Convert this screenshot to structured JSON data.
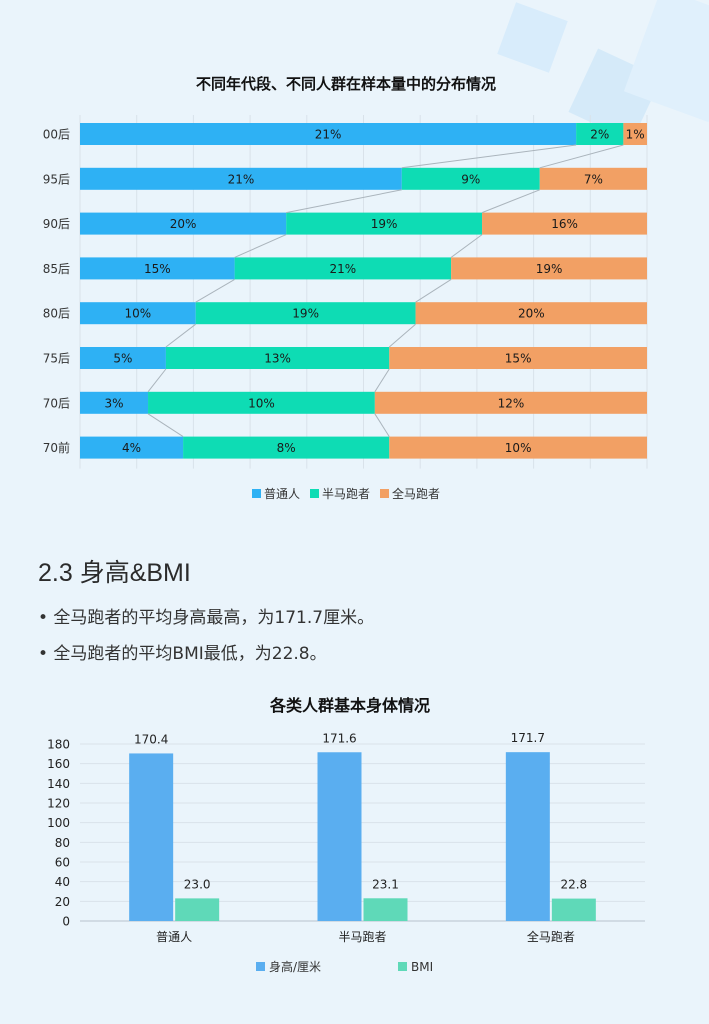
{
  "section": {
    "title": "2.3 身高&BMI",
    "bullets": [
      "• 全马跑者的平均身高最高，为171.7厘米。",
      "• 全马跑者的平均BMI最低，为22.8。"
    ]
  },
  "chart_data": [
    {
      "type": "bar",
      "orientation": "horizontal",
      "stacked": true,
      "title": "不同年代段、不同人群在样本量中的分布情况",
      "categories": [
        "00后",
        "95后",
        "90后",
        "85后",
        "80后",
        "75后",
        "70后",
        "70前"
      ],
      "series": [
        {
          "name": "普通人",
          "color": "#2eb1f4",
          "values": [
            21,
            21,
            20,
            15,
            10,
            5,
            3,
            4
          ]
        },
        {
          "name": "半马跑者",
          "color": "#0edcb4",
          "values": [
            2,
            9,
            19,
            21,
            19,
            13,
            10,
            8
          ]
        },
        {
          "name": "全马跑者",
          "color": "#f2a064",
          "values": [
            1,
            7,
            16,
            19,
            20,
            15,
            12,
            10
          ]
        }
      ],
      "value_suffix": "%",
      "legend": "bottom",
      "grid": true
    },
    {
      "type": "bar",
      "title": "各类人群基本身体情况",
      "categories": [
        "普通人",
        "半马跑者",
        "全马跑者"
      ],
      "series": [
        {
          "name": "身高/厘米",
          "color": "#5aaef0",
          "values": [
            170.4,
            171.6,
            171.7
          ],
          "labels": [
            "170.4",
            "171.6",
            "171.7"
          ]
        },
        {
          "name": "BMI",
          "color": "#5fd9b8",
          "values": [
            23.0,
            23.1,
            22.8
          ],
          "labels": [
            "23.0",
            "23.1",
            "22.8"
          ]
        }
      ],
      "ylim": [
        0,
        180
      ],
      "yticks": [
        "0",
        "20",
        "40",
        "60",
        "80",
        "100",
        "120",
        "140",
        "160",
        "180"
      ],
      "legend": "bottom",
      "grid": true
    }
  ]
}
